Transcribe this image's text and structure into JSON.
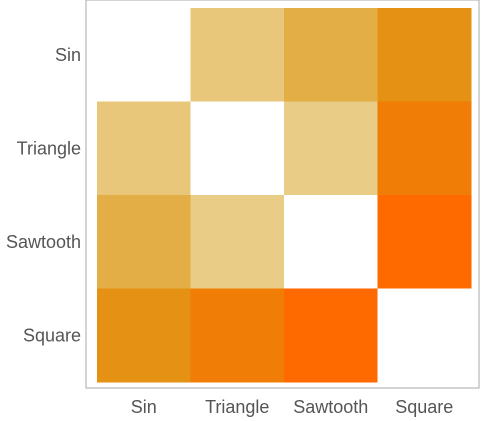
{
  "chart_data": {
    "type": "heatmap",
    "title": "",
    "xlabel": "",
    "ylabel": "",
    "rows": [
      "Sin",
      "Triangle",
      "Sawtooth",
      "Square"
    ],
    "columns": [
      "Sin",
      "Triangle",
      "Sawtooth",
      "Square"
    ],
    "values": [
      [
        0,
        0.25,
        0.5,
        0.7
      ],
      [
        0.25,
        0,
        0.2,
        0.85
      ],
      [
        0.5,
        0.2,
        0,
        1.0
      ],
      [
        0.7,
        0.85,
        1.0,
        0
      ]
    ],
    "diagonal_blank": true,
    "grid": false,
    "colors": {
      "low": "#ede0b0",
      "high": "#ff6a00",
      "blank": "#ffffff",
      "frame": "#aaaaaa"
    }
  }
}
